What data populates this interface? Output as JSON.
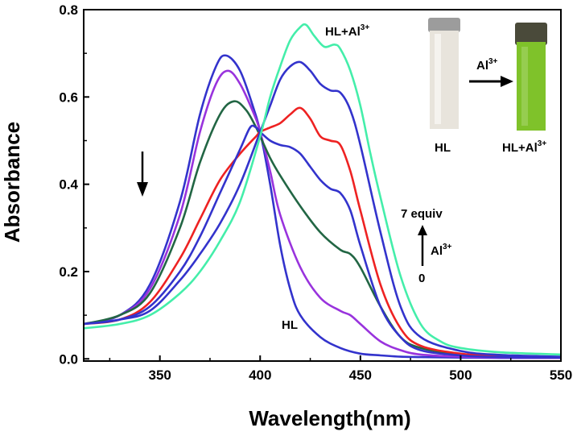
{
  "chart_data": {
    "type": "line",
    "xlabel": "Wavelength(nm)",
    "ylabel": "Absorbance",
    "xlim": [
      312,
      550
    ],
    "ylim": [
      -0.005,
      0.8
    ],
    "xticks": [
      350,
      400,
      450,
      500,
      550
    ],
    "yticks": [
      0.0,
      0.2,
      0.4,
      0.6,
      0.8
    ],
    "xtick_labels": [
      "350",
      "400",
      "450",
      "500",
      "550"
    ],
    "ytick_labels": [
      "0.0",
      "0.2",
      "0.4",
      "0.6",
      "0.8"
    ],
    "grid": false,
    "series": [
      {
        "color": "#3333cc",
        "x": [
          312,
          330,
          345,
          360,
          370,
          378,
          383,
          390,
          397,
          400,
          405,
          410,
          415,
          420,
          430,
          440,
          450,
          460,
          470,
          480,
          500,
          520,
          550
        ],
        "y": [
          0.08,
          0.1,
          0.17,
          0.36,
          0.56,
          0.67,
          0.695,
          0.66,
          0.57,
          0.52,
          0.4,
          0.26,
          0.16,
          0.1,
          0.05,
          0.025,
          0.012,
          0.008,
          0.005,
          0.004,
          0.003,
          0.002,
          0.002
        ]
      },
      {
        "color": "#9933dd",
        "x": [
          312,
          330,
          345,
          360,
          370,
          378,
          384,
          390,
          397,
          400,
          405,
          410,
          420,
          430,
          440,
          445,
          450,
          460,
          470,
          480,
          500,
          520,
          550
        ],
        "y": [
          0.08,
          0.1,
          0.16,
          0.33,
          0.52,
          0.63,
          0.66,
          0.63,
          0.56,
          0.52,
          0.43,
          0.33,
          0.21,
          0.14,
          0.11,
          0.1,
          0.08,
          0.04,
          0.02,
          0.01,
          0.005,
          0.003,
          0.002
        ]
      },
      {
        "color": "#226644",
        "x": [
          312,
          330,
          345,
          360,
          370,
          380,
          387,
          393,
          398,
          400,
          405,
          410,
          420,
          430,
          440,
          445,
          450,
          460,
          470,
          480,
          500,
          520,
          550
        ],
        "y": [
          0.08,
          0.1,
          0.15,
          0.3,
          0.45,
          0.56,
          0.59,
          0.57,
          0.53,
          0.51,
          0.46,
          0.42,
          0.35,
          0.29,
          0.25,
          0.24,
          0.21,
          0.12,
          0.05,
          0.025,
          0.01,
          0.005,
          0.003
        ]
      },
      {
        "color": "#ee2222",
        "x": [
          312,
          330,
          345,
          360,
          370,
          380,
          390,
          398,
          400,
          405,
          410,
          415,
          420,
          425,
          430,
          435,
          440,
          445,
          450,
          460,
          470,
          480,
          500,
          520,
          550
        ],
        "y": [
          0.08,
          0.09,
          0.13,
          0.23,
          0.32,
          0.41,
          0.47,
          0.51,
          0.52,
          0.53,
          0.54,
          0.56,
          0.575,
          0.55,
          0.51,
          0.5,
          0.49,
          0.43,
          0.34,
          0.17,
          0.07,
          0.03,
          0.012,
          0.006,
          0.004
        ]
      },
      {
        "color": "#3333cc",
        "x": [
          312,
          330,
          345,
          360,
          370,
          380,
          390,
          395,
          398,
          400,
          405,
          410,
          415,
          420,
          425,
          430,
          435,
          440,
          445,
          450,
          460,
          470,
          480,
          500,
          520,
          550
        ],
        "y": [
          0.08,
          0.09,
          0.12,
          0.2,
          0.28,
          0.38,
          0.48,
          0.53,
          0.53,
          0.52,
          0.5,
          0.49,
          0.485,
          0.47,
          0.44,
          0.41,
          0.39,
          0.38,
          0.34,
          0.26,
          0.12,
          0.05,
          0.02,
          0.008,
          0.004,
          0.003
        ]
      },
      {
        "color": "#3333cc",
        "x": [
          312,
          330,
          345,
          360,
          370,
          380,
          390,
          400,
          405,
          410,
          415,
          420,
          425,
          430,
          435,
          440,
          445,
          450,
          460,
          470,
          480,
          500,
          520,
          550
        ],
        "y": [
          0.08,
          0.09,
          0.11,
          0.18,
          0.24,
          0.31,
          0.4,
          0.52,
          0.58,
          0.64,
          0.67,
          0.68,
          0.66,
          0.63,
          0.615,
          0.61,
          0.57,
          0.49,
          0.29,
          0.12,
          0.05,
          0.018,
          0.009,
          0.005
        ]
      },
      {
        "color": "#44eeaa",
        "x": [
          312,
          330,
          345,
          360,
          370,
          380,
          390,
          400,
          405,
          410,
          415,
          420,
          423,
          427,
          432,
          437,
          440,
          445,
          450,
          455,
          460,
          470,
          480,
          490,
          500,
          520,
          550
        ],
        "y": [
          0.07,
          0.08,
          0.1,
          0.15,
          0.2,
          0.27,
          0.36,
          0.51,
          0.6,
          0.67,
          0.73,
          0.76,
          0.765,
          0.74,
          0.715,
          0.72,
          0.71,
          0.66,
          0.58,
          0.47,
          0.37,
          0.19,
          0.08,
          0.04,
          0.025,
          0.015,
          0.01
        ]
      }
    ],
    "annotations": {
      "hl_label": "HL",
      "hl_al_main": "HL+Al",
      "al_sup": "3+",
      "equiv_top": "7 equiv",
      "al_side": "Al",
      "equiv_zero": "0",
      "inset_hl": "HL",
      "inset_hl_al": "HL+Al",
      "inset_arrow_label": "Al"
    }
  },
  "colors": {
    "inset_background": "#ffffff",
    "cuvette_clear": "#e8e4dc",
    "cuvette_green": "#7fc22a",
    "cap": "#9c9c9c"
  }
}
